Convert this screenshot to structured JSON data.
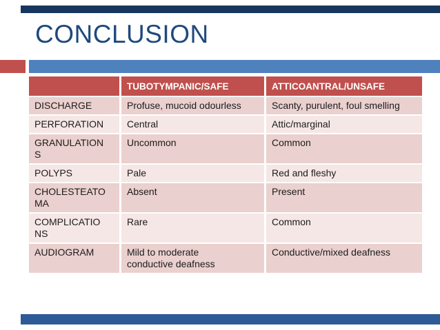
{
  "slide": {
    "title": "CONCLUSION",
    "colors": {
      "title_text": "#1F497D",
      "top_bar": "#17365D",
      "accent_red": "#C0504D",
      "accent_blue": "#4F81BD",
      "header_bg": "#C0504D",
      "header_text": "#FFFFFF",
      "row_dark": "#EAD0CE",
      "row_light": "#F5E7E6",
      "bottom_bar": "#2E5A97"
    }
  },
  "table": {
    "columns": [
      "",
      "TUBOTYMPANIC/SAFE",
      "ATTICOANTRAL/UNSAFE"
    ],
    "rows": [
      {
        "label": "DISCHARGE",
        "safe": "Profuse, mucoid odourless",
        "unsafe": "Scanty, purulent, foul smelling"
      },
      {
        "label": "PERFORATION",
        "safe": "Central",
        "unsafe": "Attic/marginal"
      },
      {
        "label": "GRANULATION\nS",
        "safe": "Uncommon",
        "unsafe": "Common"
      },
      {
        "label": "POLYPS",
        "safe": "Pale",
        "unsafe": "Red and fleshy"
      },
      {
        "label": "CHOLESTEATO\nMA",
        "safe": "Absent",
        "unsafe": "Present"
      },
      {
        "label": "COMPLICATIO\nNS",
        "safe": "Rare",
        "unsafe": "Common"
      },
      {
        "label": "AUDIOGRAM",
        "safe": "Mild to moderate\nconductive deafness",
        "unsafe": "Conductive/mixed deafness"
      }
    ]
  }
}
